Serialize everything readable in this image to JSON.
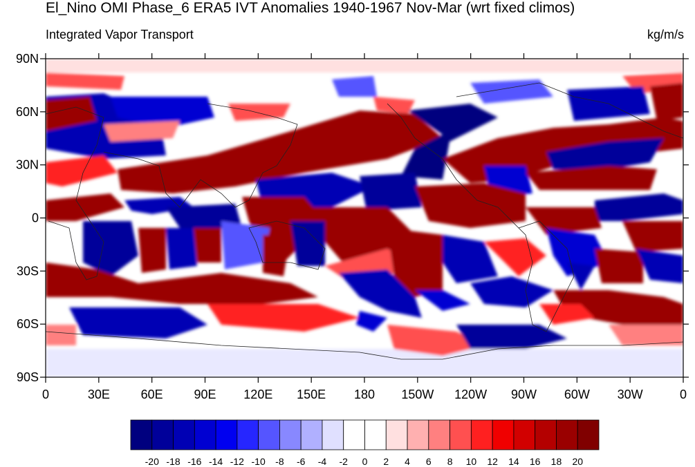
{
  "title": "El_Nino OMI Phase_6 ERA5 IVT Anomalies 1940-1967 Nov-Mar (wrt fixed climos)",
  "subtitle": "Integrated Vapor Transport",
  "units": "kg/m/s",
  "map": {
    "type": "filled-contour-map",
    "projection": "cylindrical-equidistant",
    "lon_range": [
      0,
      360
    ],
    "lat_range": [
      -90,
      90
    ],
    "lat_ticks": [
      "90N",
      "60N",
      "30N",
      "0",
      "30S",
      "60S",
      "90S"
    ],
    "lon_ticks": [
      "0",
      "30E",
      "60E",
      "90E",
      "120E",
      "150E",
      "180",
      "150W",
      "120W",
      "90W",
      "60W",
      "30W",
      "0"
    ]
  },
  "colorbar": {
    "labels": [
      "-20",
      "-18",
      "-16",
      "-14",
      "-12",
      "-10",
      "-8",
      "-6",
      "-4",
      "-2",
      "0",
      "2",
      "4",
      "6",
      "8",
      "10",
      "12",
      "14",
      "16",
      "18",
      "20"
    ],
    "colors": [
      "#00007f",
      "#00009a",
      "#0000b4",
      "#0000d2",
      "#0000f0",
      "#2626ff",
      "#5555ff",
      "#8888ff",
      "#b0b0ff",
      "#e0e0ff",
      "#ffffff",
      "#ffffff",
      "#ffe0e0",
      "#ffb0b0",
      "#ff8080",
      "#ff5050",
      "#ff2020",
      "#f00000",
      "#d20000",
      "#b40000",
      "#9a0000",
      "#800000"
    ]
  }
}
